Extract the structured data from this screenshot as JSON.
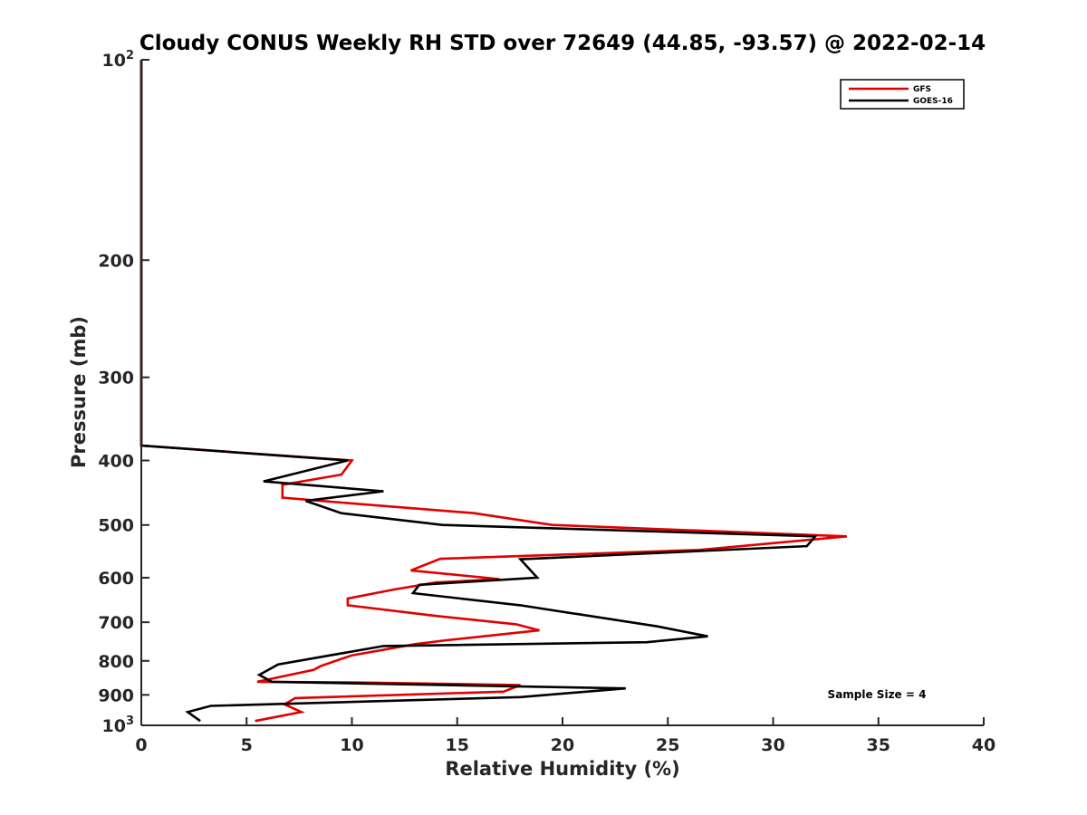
{
  "chart_data": {
    "type": "line",
    "title": "Cloudy CONUS Weekly RH STD over 72649 (44.85, -93.57) @ 2022-02-14",
    "xlabel": "Relative Humidity (%)",
    "ylabel": "Pressure (mb)",
    "xlim": [
      0,
      40
    ],
    "ylim": [
      100,
      1000
    ],
    "yscale": "log",
    "y_reversed": true,
    "x_ticks": [
      "0",
      "5",
      "10",
      "15",
      "20",
      "25",
      "30",
      "35",
      "40"
    ],
    "y_ticks": [
      {
        "value": 100,
        "base": "10",
        "exp": "2"
      },
      {
        "value": 200,
        "label": "200"
      },
      {
        "value": 300,
        "label": "300"
      },
      {
        "value": 400,
        "label": "400"
      },
      {
        "value": 500,
        "label": "500"
      },
      {
        "value": 600,
        "label": "600"
      },
      {
        "value": 700,
        "label": "700"
      },
      {
        "value": 800,
        "label": "800"
      },
      {
        "value": 900,
        "label": "900"
      },
      {
        "value": 1000,
        "base": "10",
        "exp": "3"
      }
    ],
    "legend_position": "top-right",
    "annotation": "Sample Size = 4",
    "series": [
      {
        "name": "GFS",
        "color": "#e00000",
        "points": [
          [
            0,
            100
          ],
          [
            0,
            380
          ],
          [
            10.0,
            400
          ],
          [
            9.5,
            420
          ],
          [
            6.7,
            435
          ],
          [
            6.7,
            455
          ],
          [
            8.5,
            460
          ],
          [
            15.8,
            480
          ],
          [
            19.5,
            500
          ],
          [
            33.5,
            520
          ],
          [
            26.5,
            545
          ],
          [
            14.2,
            562
          ],
          [
            12.8,
            585
          ],
          [
            17.0,
            603
          ],
          [
            14.0,
            610
          ],
          [
            12.0,
            625
          ],
          [
            9.8,
            645
          ],
          [
            9.8,
            660
          ],
          [
            14.0,
            685
          ],
          [
            17.8,
            705
          ],
          [
            18.9,
            720
          ],
          [
            14.5,
            745
          ],
          [
            13.0,
            755
          ],
          [
            10.0,
            785
          ],
          [
            8.5,
            815
          ],
          [
            8.2,
            825
          ],
          [
            5.5,
            860
          ],
          [
            10.0,
            862
          ],
          [
            18.0,
            870
          ],
          [
            17.2,
            890
          ],
          [
            7.3,
            910
          ],
          [
            6.8,
            930
          ],
          [
            7.6,
            955
          ],
          [
            5.4,
            985
          ]
        ]
      },
      {
        "name": "GOES-16",
        "color": "#000000",
        "points": [
          [
            0,
            100
          ],
          [
            0,
            380
          ],
          [
            9.8,
            400
          ],
          [
            5.8,
            430
          ],
          [
            11.5,
            445
          ],
          [
            7.8,
            460
          ],
          [
            9.5,
            480
          ],
          [
            14.3,
            500
          ],
          [
            32.0,
            520
          ],
          [
            31.6,
            538
          ],
          [
            18.0,
            563
          ],
          [
            18.8,
            600
          ],
          [
            13.2,
            615
          ],
          [
            12.9,
            633
          ],
          [
            18.0,
            660
          ],
          [
            24.5,
            710
          ],
          [
            26.9,
            735
          ],
          [
            24.0,
            750
          ],
          [
            11.5,
            760
          ],
          [
            6.5,
            810
          ],
          [
            5.6,
            840
          ],
          [
            6.2,
            860
          ],
          [
            23.0,
            880
          ],
          [
            18.0,
            907
          ],
          [
            3.3,
            935
          ],
          [
            2.2,
            955
          ],
          [
            2.8,
            985
          ]
        ]
      }
    ]
  }
}
